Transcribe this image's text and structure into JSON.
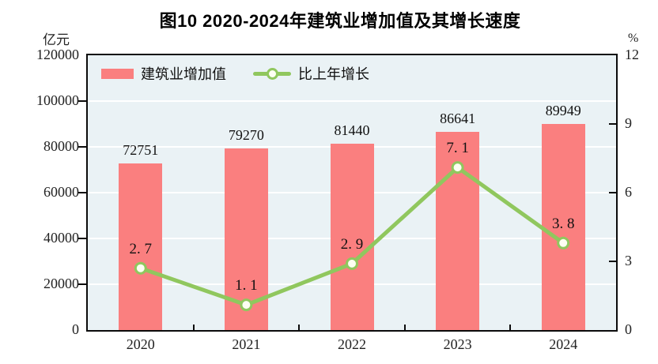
{
  "header": {
    "title": "图10  2020-2024年建筑业增加值及其增长速度"
  },
  "axes": {
    "left_unit": "亿元",
    "right_unit": "%",
    "left_tick_labels": [
      "0",
      "20000",
      "40000",
      "60000",
      "80000",
      "100000",
      "120000"
    ],
    "right_tick_labels": [
      "0",
      "3",
      "6",
      "9",
      "12"
    ]
  },
  "legend": {
    "bar_label": "建筑业增加值",
    "line_label": "比上年增长"
  },
  "colors": {
    "bar": "#fa7f7f",
    "line": "#90c75e",
    "marker_fill": "#fdfff2",
    "plot_background": "#eaf2f5",
    "gridline": "#ffffff",
    "axis": "#0b0b0b"
  },
  "chart_data": {
    "type": "bar",
    "subtype": "bar+line combo, dual axis",
    "title": "图10 2020-2024年建筑业增加值及其增长速度",
    "categories": [
      "2020",
      "2021",
      "2022",
      "2023",
      "2024"
    ],
    "series": [
      {
        "name": "建筑业增加值",
        "type": "bar",
        "axis": "left",
        "unit": "亿元",
        "values": [
          72751,
          79270,
          81440,
          86641,
          89949
        ],
        "labels": [
          "72751",
          "79270",
          "81440",
          "86641",
          "89949"
        ],
        "color": "#fa7f7f"
      },
      {
        "name": "比上年增长",
        "type": "line",
        "axis": "right",
        "unit": "%",
        "values": [
          2.7,
          1.1,
          2.9,
          7.1,
          3.8
        ],
        "labels": [
          "2. 7",
          "1. 1",
          "2. 9",
          "7. 1",
          "3. 8"
        ],
        "color": "#90c75e"
      }
    ],
    "left_axis": {
      "label": "亿元",
      "min": 0,
      "max": 120000,
      "step": 20000
    },
    "right_axis": {
      "label": "%",
      "min": 0,
      "max": 12,
      "step": 3
    },
    "grid": "horizontal white gridlines every 20000",
    "legend_position": "top-left inside plot"
  }
}
